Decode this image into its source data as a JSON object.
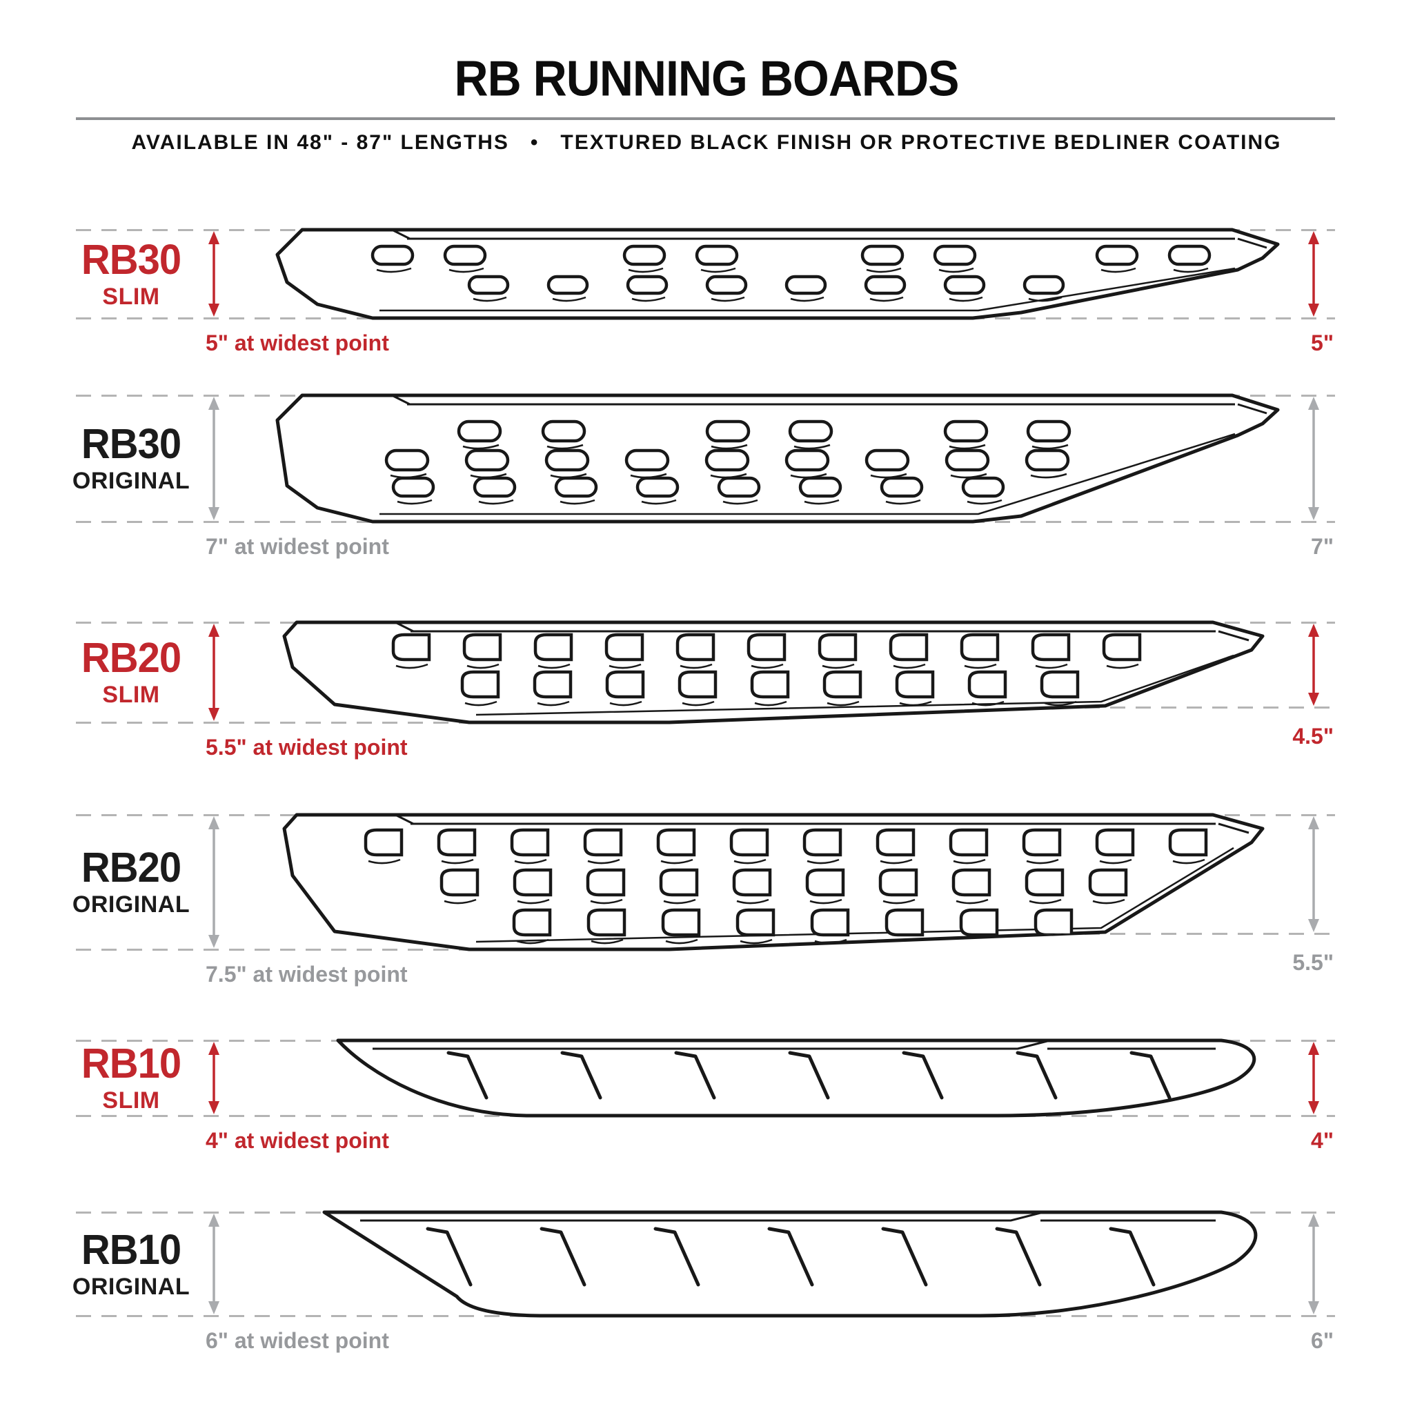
{
  "header": {
    "title": "RB RUNNING BOARDS",
    "subtitle": "AVAILABLE IN 48\" - 87\" LENGTHS   •   TEXTURED BLACK FINISH OR PROTECTIVE BEDLINER COATING"
  },
  "colors": {
    "accent_red": "#C1272D",
    "gray_text": "#97999C",
    "gray_arrow": "#A9ABAE",
    "dash_gray": "#B4B4B4",
    "line_black": "#181818",
    "divider_gray": "#8D8F92"
  },
  "rows": [
    {
      "model": "RB30",
      "variant": "SLIM",
      "board_type": "rb30",
      "finish": "slim",
      "accent": "red",
      "widest_caption": "5\" at widest point",
      "width_value": "5\""
    },
    {
      "model": "RB30",
      "variant": "ORIGINAL",
      "board_type": "rb30",
      "finish": "original",
      "accent": "gray",
      "widest_caption": "7\" at widest point",
      "width_value": "7\""
    },
    {
      "model": "RB20",
      "variant": "SLIM",
      "board_type": "rb20",
      "finish": "slim",
      "accent": "red",
      "widest_caption": "5.5\" at widest point",
      "width_value": "4.5\""
    },
    {
      "model": "RB20",
      "variant": "ORIGINAL",
      "board_type": "rb20",
      "finish": "original",
      "accent": "gray",
      "widest_caption": "7.5\" at widest point",
      "width_value": "5.5\""
    },
    {
      "model": "RB10",
      "variant": "SLIM",
      "board_type": "rb10",
      "finish": "slim",
      "accent": "red",
      "widest_caption": "4\" at widest point",
      "width_value": "4\""
    },
    {
      "model": "RB10",
      "variant": "ORIGINAL",
      "board_type": "rb10",
      "finish": "original",
      "accent": "gray",
      "widest_caption": "6\" at widest point",
      "width_value": "6\""
    }
  ]
}
